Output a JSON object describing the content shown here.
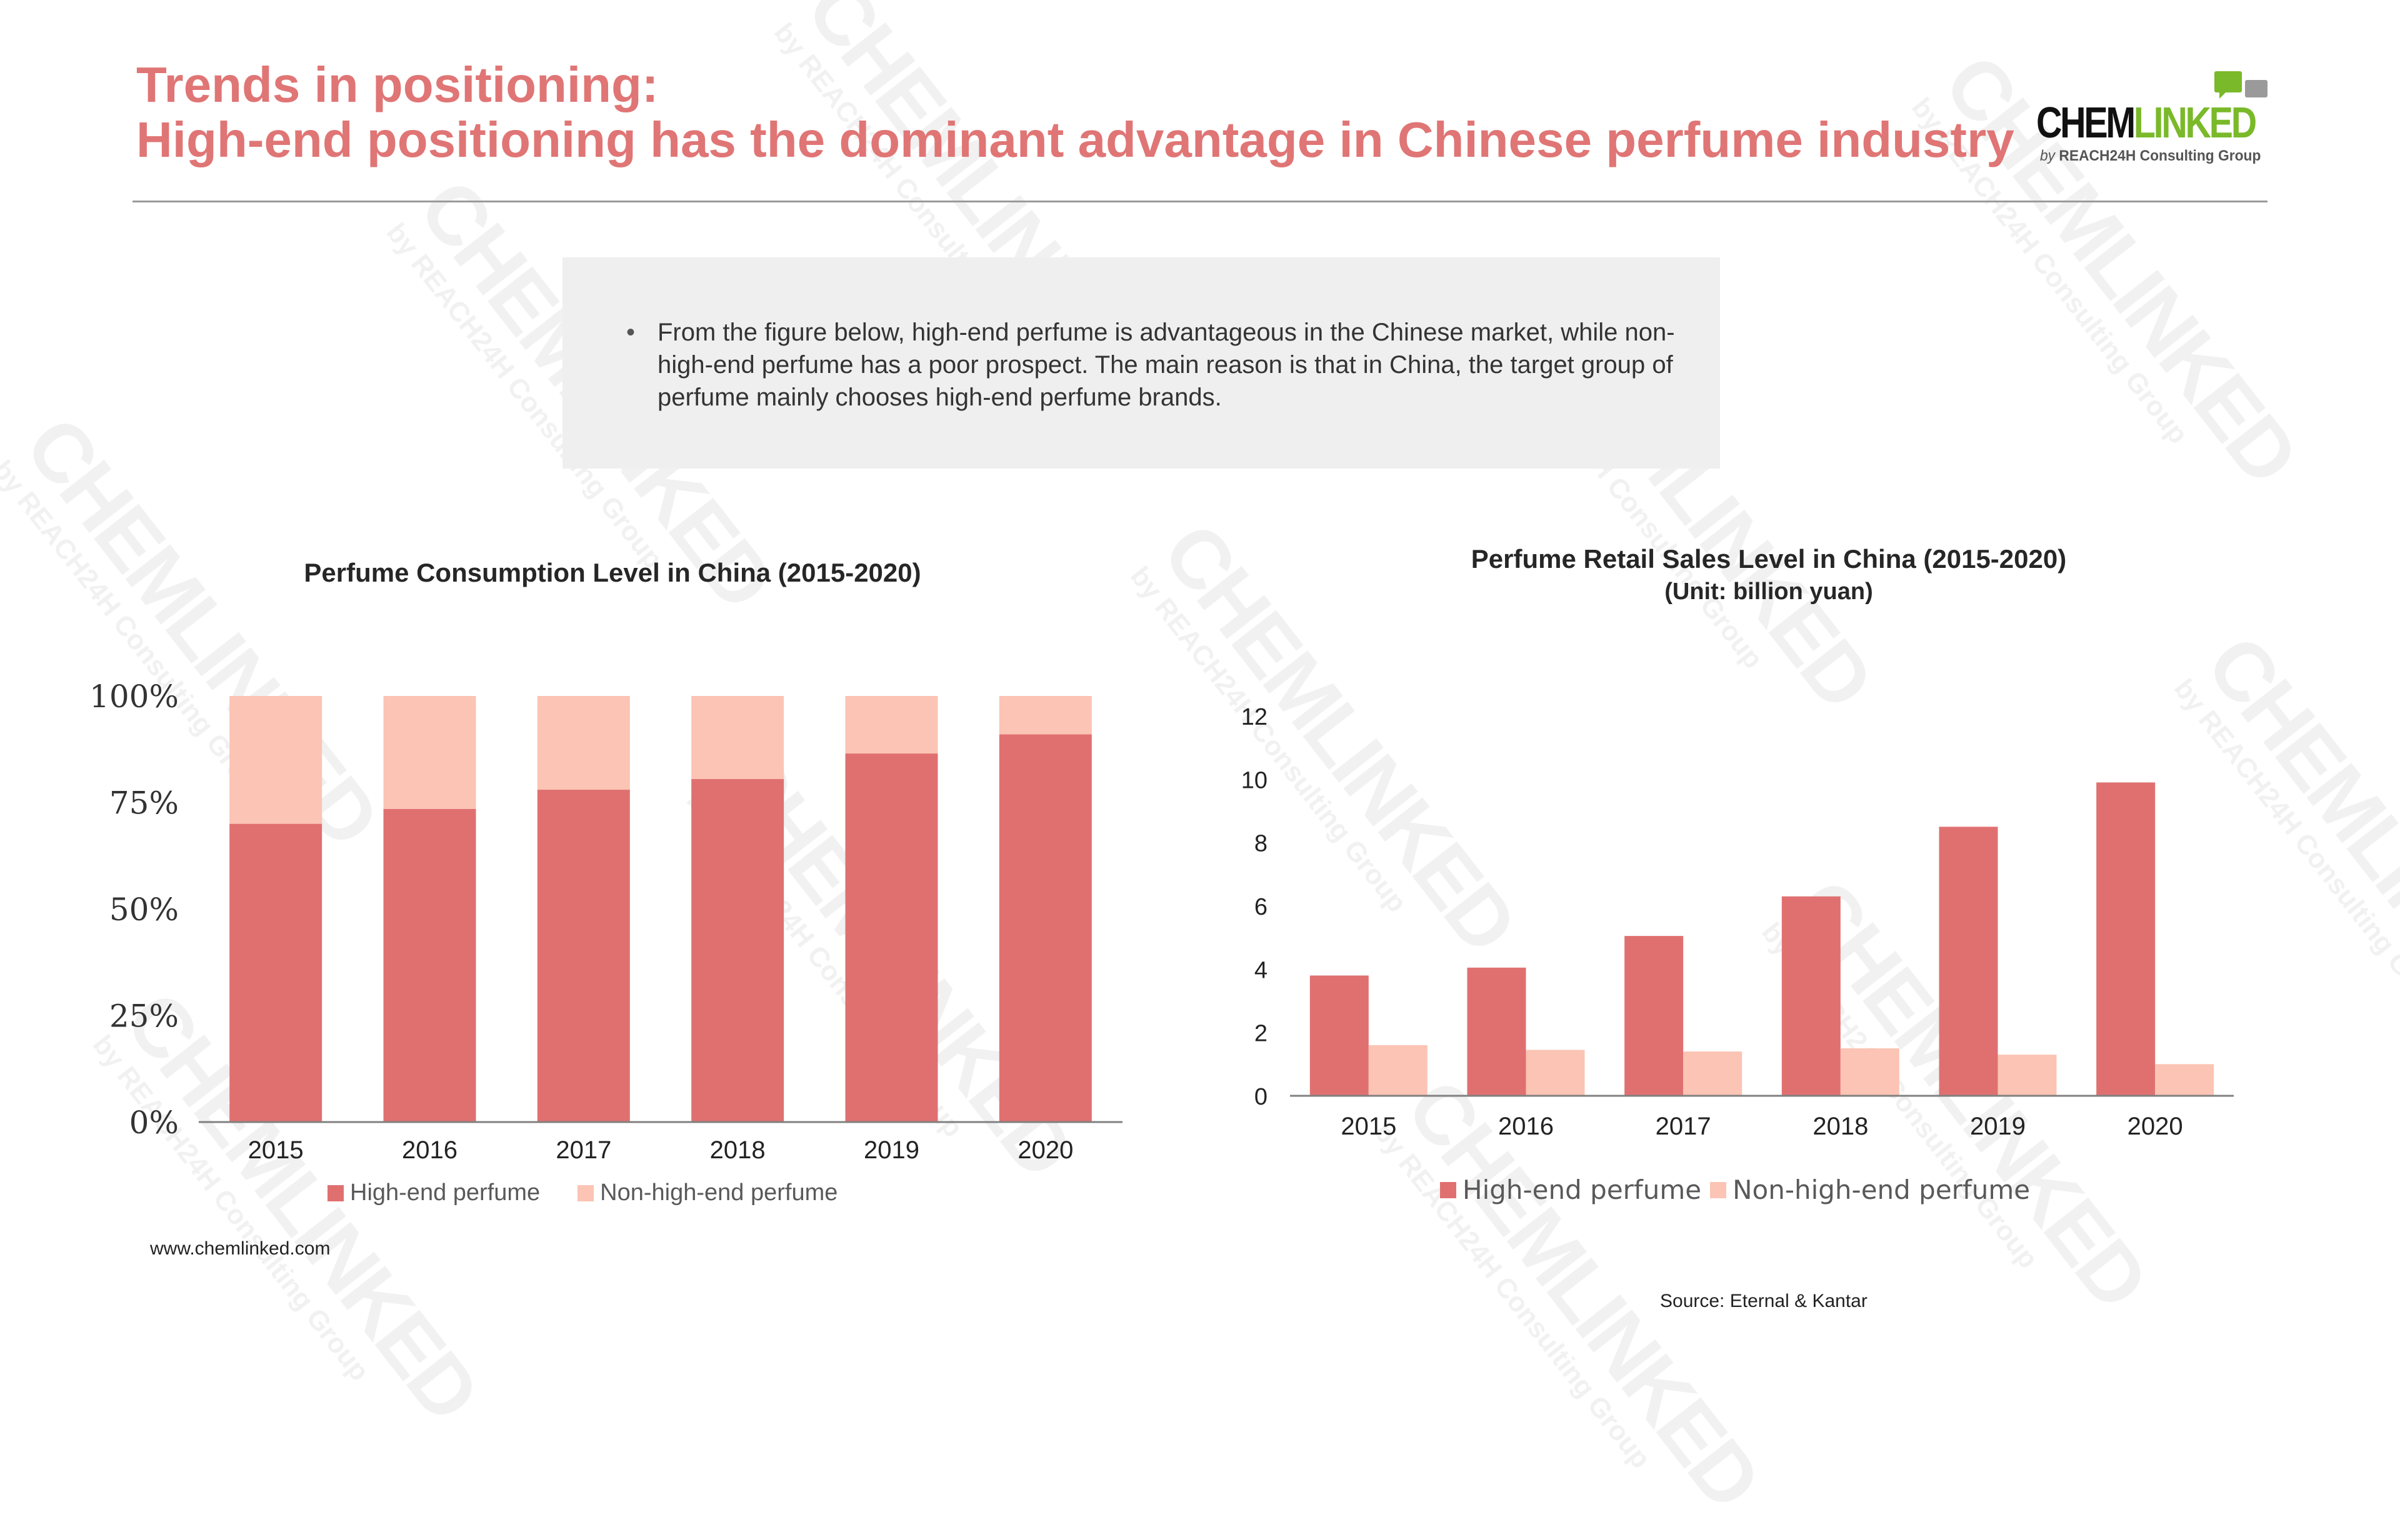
{
  "header": {
    "title_line1": "Trends in positioning:",
    "title_line2": "High-end positioning has the dominant advantage in Chinese perfume industry"
  },
  "logo": {
    "word_part1": "CHEM",
    "word_part2": "LINKED",
    "sub_prefix": "by ",
    "sub_brand": "REACH24H Consulting Group",
    "colors": {
      "green": "#7ab929",
      "dark": "#111111",
      "gray": "#9a9a9a"
    }
  },
  "note": {
    "bullet": "•",
    "text": "From the figure below, high-end perfume is advantageous in the Chinese market, while non-high-end perfume has a poor prospect. The main reason is that in China, the target group of perfume mainly chooses high-end perfume brands."
  },
  "watermark": {
    "word": "CHEMLINKED",
    "sub": "by REACH24H Consulting Group"
  },
  "colors": {
    "high_end": "#e07070",
    "non_high_end": "#fbc4b4",
    "title": "#e07575",
    "axis": "#808080"
  },
  "chart_data": [
    {
      "type": "bar",
      "stacked": true,
      "title": "Perfume Consumption Level in China (2015-2020)",
      "categories": [
        "2015",
        "2016",
        "2017",
        "2018",
        "2019",
        "2020"
      ],
      "series": [
        {
          "name": "High-end perfume",
          "values": [
            70,
            73.5,
            78,
            80.5,
            86.5,
            91
          ]
        },
        {
          "name": "Non-high-end perfume",
          "values": [
            30,
            26.5,
            22,
            19.5,
            13.5,
            9
          ]
        }
      ],
      "ylim": [
        0,
        100
      ],
      "yticks": [
        "0%",
        "25%",
        "50%",
        "75%",
        "100%"
      ],
      "ytick_values": [
        0,
        25,
        50,
        75,
        100
      ],
      "grid": false,
      "legend_position": "bottom"
    },
    {
      "type": "bar",
      "stacked": false,
      "title": "Perfume Retail Sales Level in China (2015-2020)",
      "subtitle": "(Unit: billion yuan)",
      "categories": [
        "2015",
        "2016",
        "2017",
        "2018",
        "2019",
        "2020"
      ],
      "series": [
        {
          "name": "High-end perfume",
          "values": [
            3.8,
            4.05,
            5.05,
            6.3,
            8.5,
            9.9
          ]
        },
        {
          "name": "Non-high-end perfume",
          "values": [
            1.6,
            1.45,
            1.4,
            1.5,
            1.3,
            1.0
          ]
        }
      ],
      "ylim": [
        0,
        12
      ],
      "yticks": [
        "0",
        "2",
        "4",
        "6",
        "8",
        "10",
        "12"
      ],
      "ytick_values": [
        0,
        2,
        4,
        6,
        8,
        10,
        12
      ],
      "grid": false,
      "legend_position": "bottom"
    }
  ],
  "footer": {
    "url": "www.chemlinked.com",
    "source": "Source: Eternal & Kantar"
  }
}
